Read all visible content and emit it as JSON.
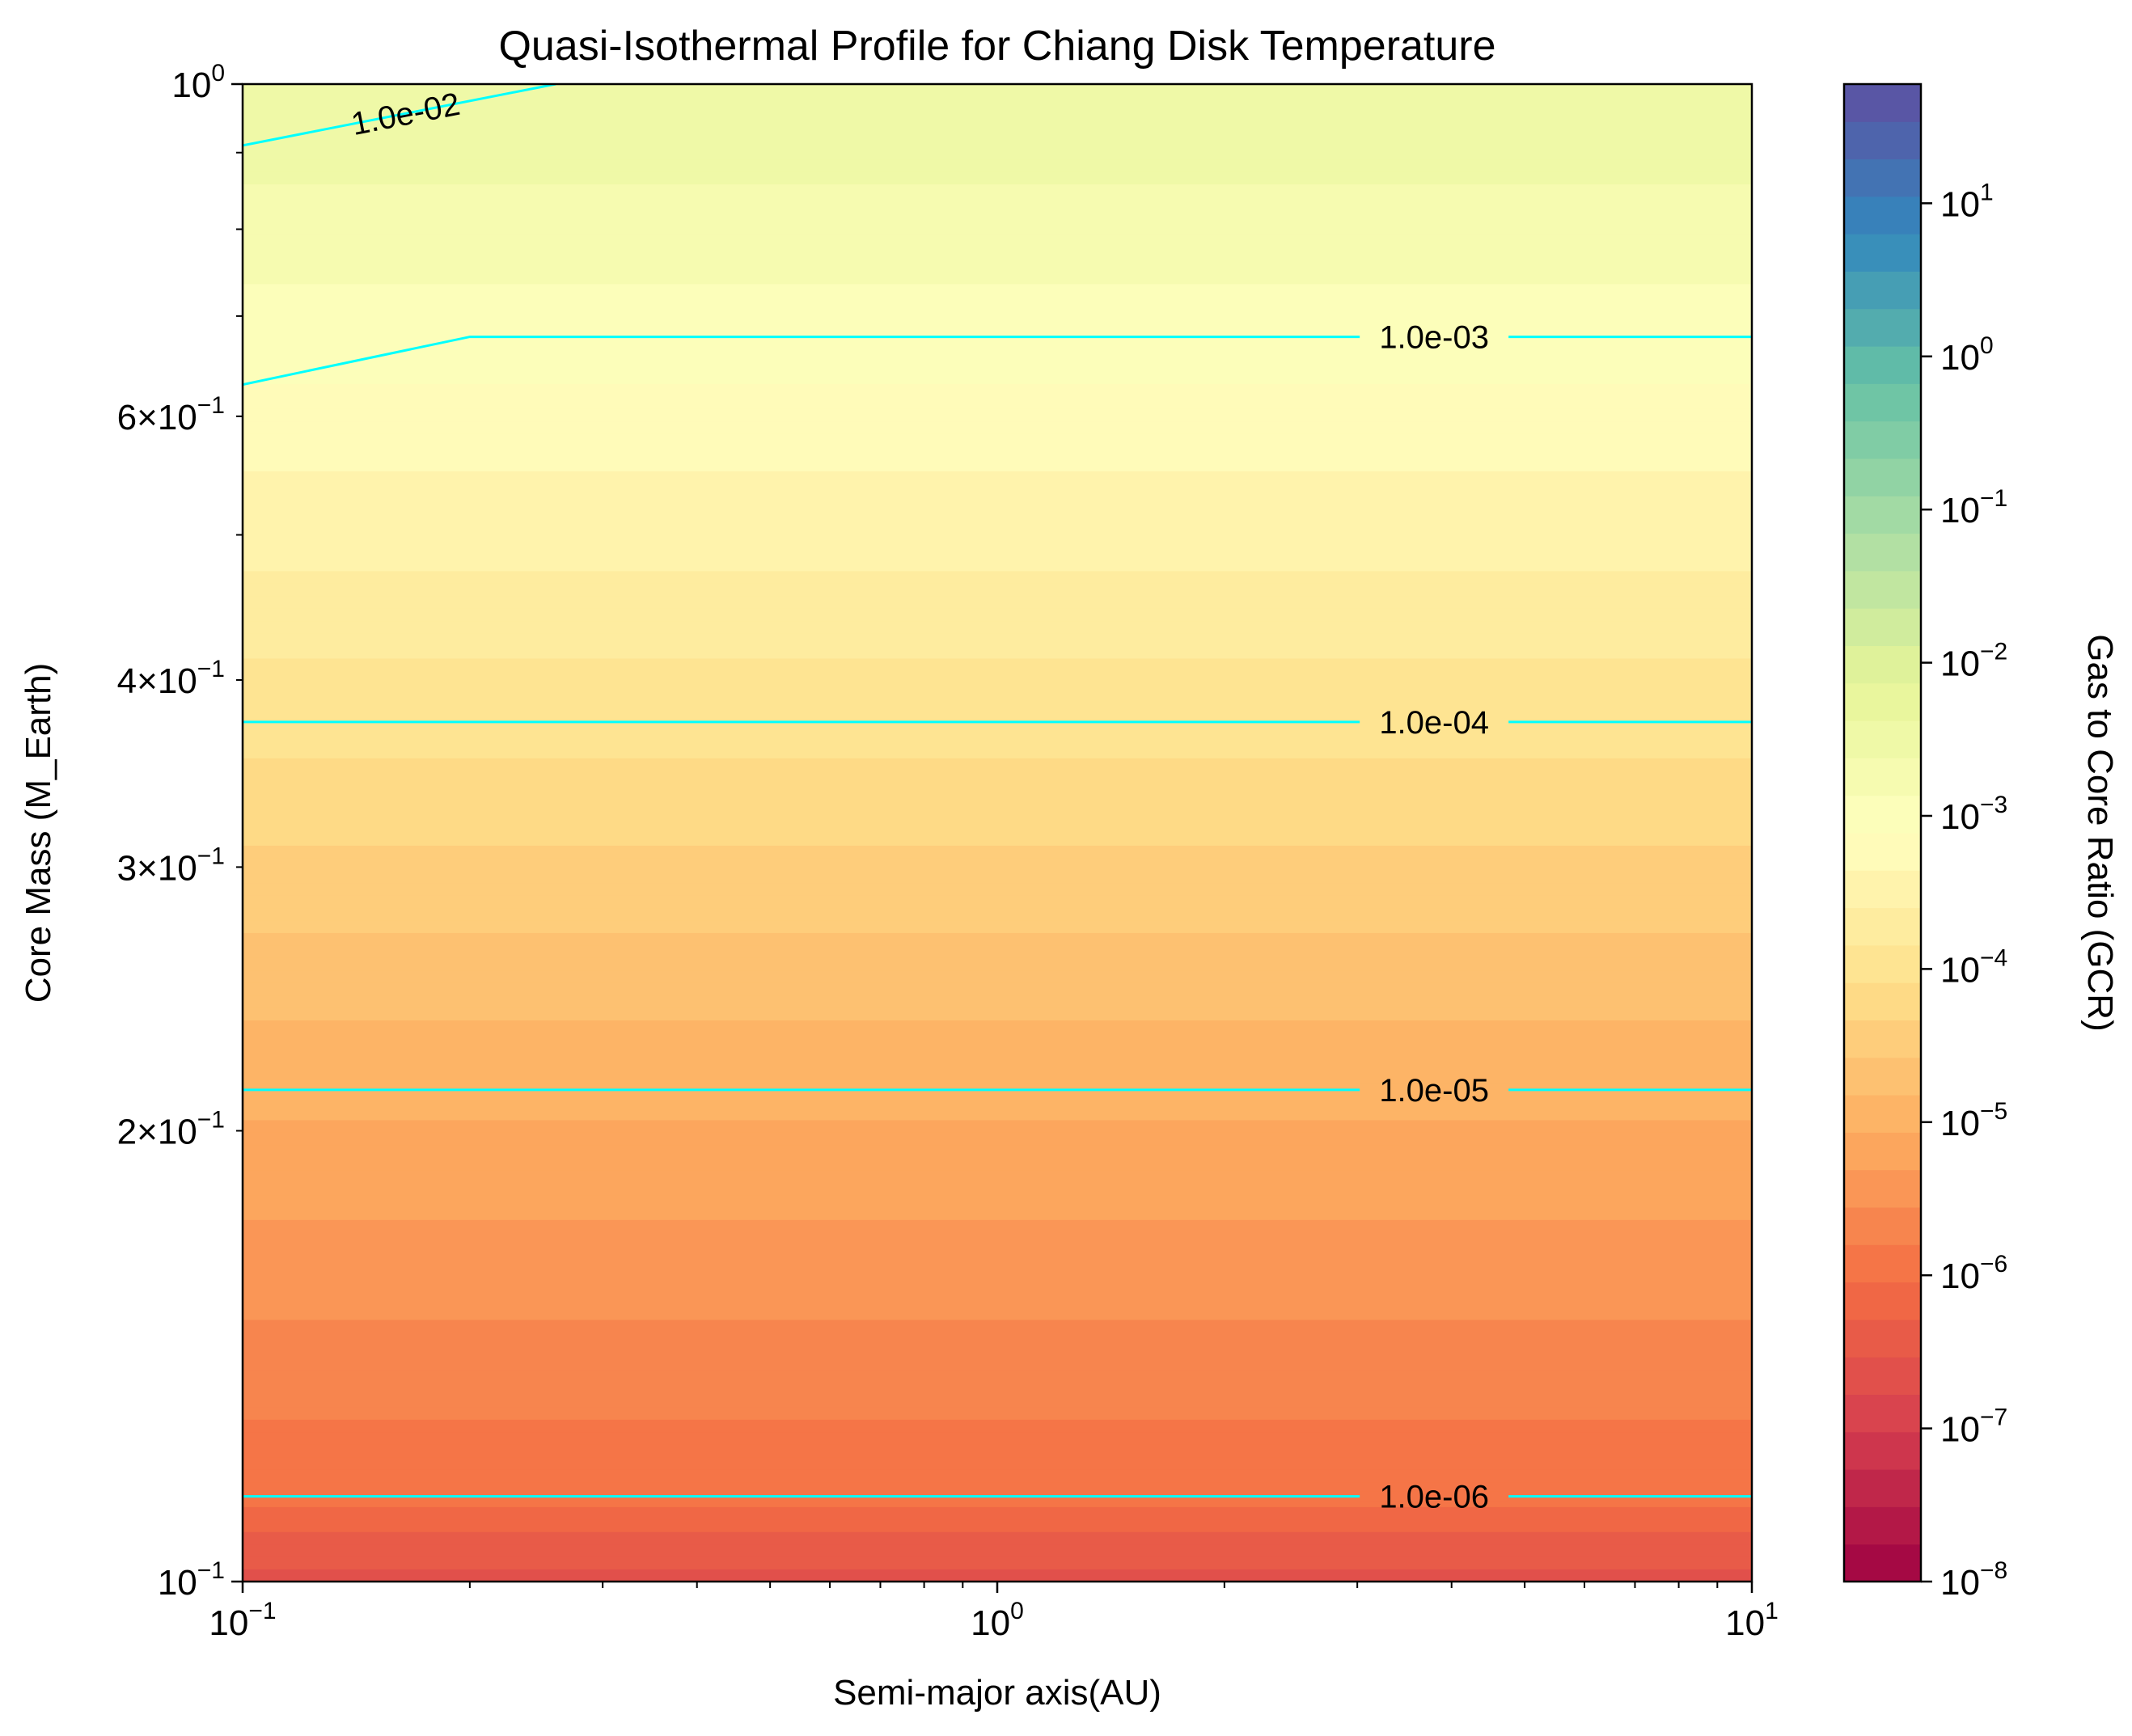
{
  "chart_data": {
    "type": "heatmap",
    "title": "Quasi-Isothermal Profile for Chiang Disk Temperature",
    "xlabel": "Semi-major axis(AU)",
    "ylabel": "Core Mass (M_Earth)",
    "colorbar_label": "Gas to Core Ratio (GCR)",
    "x_scale": "log",
    "y_scale": "log",
    "xlim": [
      0.1,
      10
    ],
    "ylim": [
      0.1,
      1.0
    ],
    "colorbar_scale": "log",
    "colorbar_range": [
      1e-08,
      60
    ],
    "colormap": "Spectral",
    "contour_color": "#00ffff",
    "x_ticks": [
      {
        "value": 0.1,
        "base": "10",
        "exp": "−1"
      },
      {
        "value": 1,
        "base": "10",
        "exp": "0"
      },
      {
        "value": 10,
        "base": "10",
        "exp": "1"
      }
    ],
    "y_ticks": [
      {
        "value": 1.0,
        "base": "10",
        "exp": "0"
      },
      {
        "value": 0.6,
        "base": "6×10",
        "exp": "−1"
      },
      {
        "value": 0.4,
        "base": "4×10",
        "exp": "−1"
      },
      {
        "value": 0.3,
        "base": "3×10",
        "exp": "−1"
      },
      {
        "value": 0.2,
        "base": "2×10",
        "exp": "−1"
      },
      {
        "value": 0.1,
        "base": "10",
        "exp": "−1"
      }
    ],
    "colorbar_ticks": [
      {
        "value": 10.0,
        "base": "10",
        "exp": "1"
      },
      {
        "value": 1.0,
        "base": "10",
        "exp": "0"
      },
      {
        "value": 0.1,
        "base": "10",
        "exp": "−1"
      },
      {
        "value": 0.01,
        "base": "10",
        "exp": "−2"
      },
      {
        "value": 0.001,
        "base": "10",
        "exp": "−3"
      },
      {
        "value": 0.0001,
        "base": "10",
        "exp": "−4"
      },
      {
        "value": 1e-05,
        "base": "10",
        "exp": "−5"
      },
      {
        "value": 1e-06,
        "base": "10",
        "exp": "−6"
      },
      {
        "value": 1e-07,
        "base": "10",
        "exp": "−7"
      },
      {
        "value": 1e-08,
        "base": "10",
        "exp": "−8"
      }
    ],
    "contours": [
      {
        "label": "1.0e-06",
        "value": 1e-06,
        "points": [
          [
            0.1,
            0.114
          ],
          [
            10,
            0.114
          ]
        ]
      },
      {
        "label": "1.0e-05",
        "value": 1e-05,
        "points": [
          [
            0.1,
            0.213
          ],
          [
            10,
            0.213
          ]
        ]
      },
      {
        "label": "1.0e-04",
        "value": 0.0001,
        "points": [
          [
            0.1,
            0.375
          ],
          [
            10,
            0.375
          ]
        ]
      },
      {
        "label": "1.0e-03",
        "value": 0.001,
        "points": [
          [
            0.1,
            0.63
          ],
          [
            0.2,
            0.678
          ],
          [
            10,
            0.678
          ]
        ]
      },
      {
        "label": "1.0e-02",
        "value": 0.01,
        "points": [
          [
            0.1,
            0.91
          ],
          [
            0.26,
            1.0
          ]
        ]
      }
    ],
    "gcr_vs_mass": [
      {
        "mass": 0.1,
        "gcr": 2.2e-07
      },
      {
        "mass": 0.114,
        "gcr": 1e-06
      },
      {
        "mass": 0.213,
        "gcr": 1e-05
      },
      {
        "mass": 0.375,
        "gcr": 0.0001
      },
      {
        "mass": 0.678,
        "gcr": 0.001
      },
      {
        "mass": 1.0,
        "gcr": 0.004
      }
    ]
  }
}
